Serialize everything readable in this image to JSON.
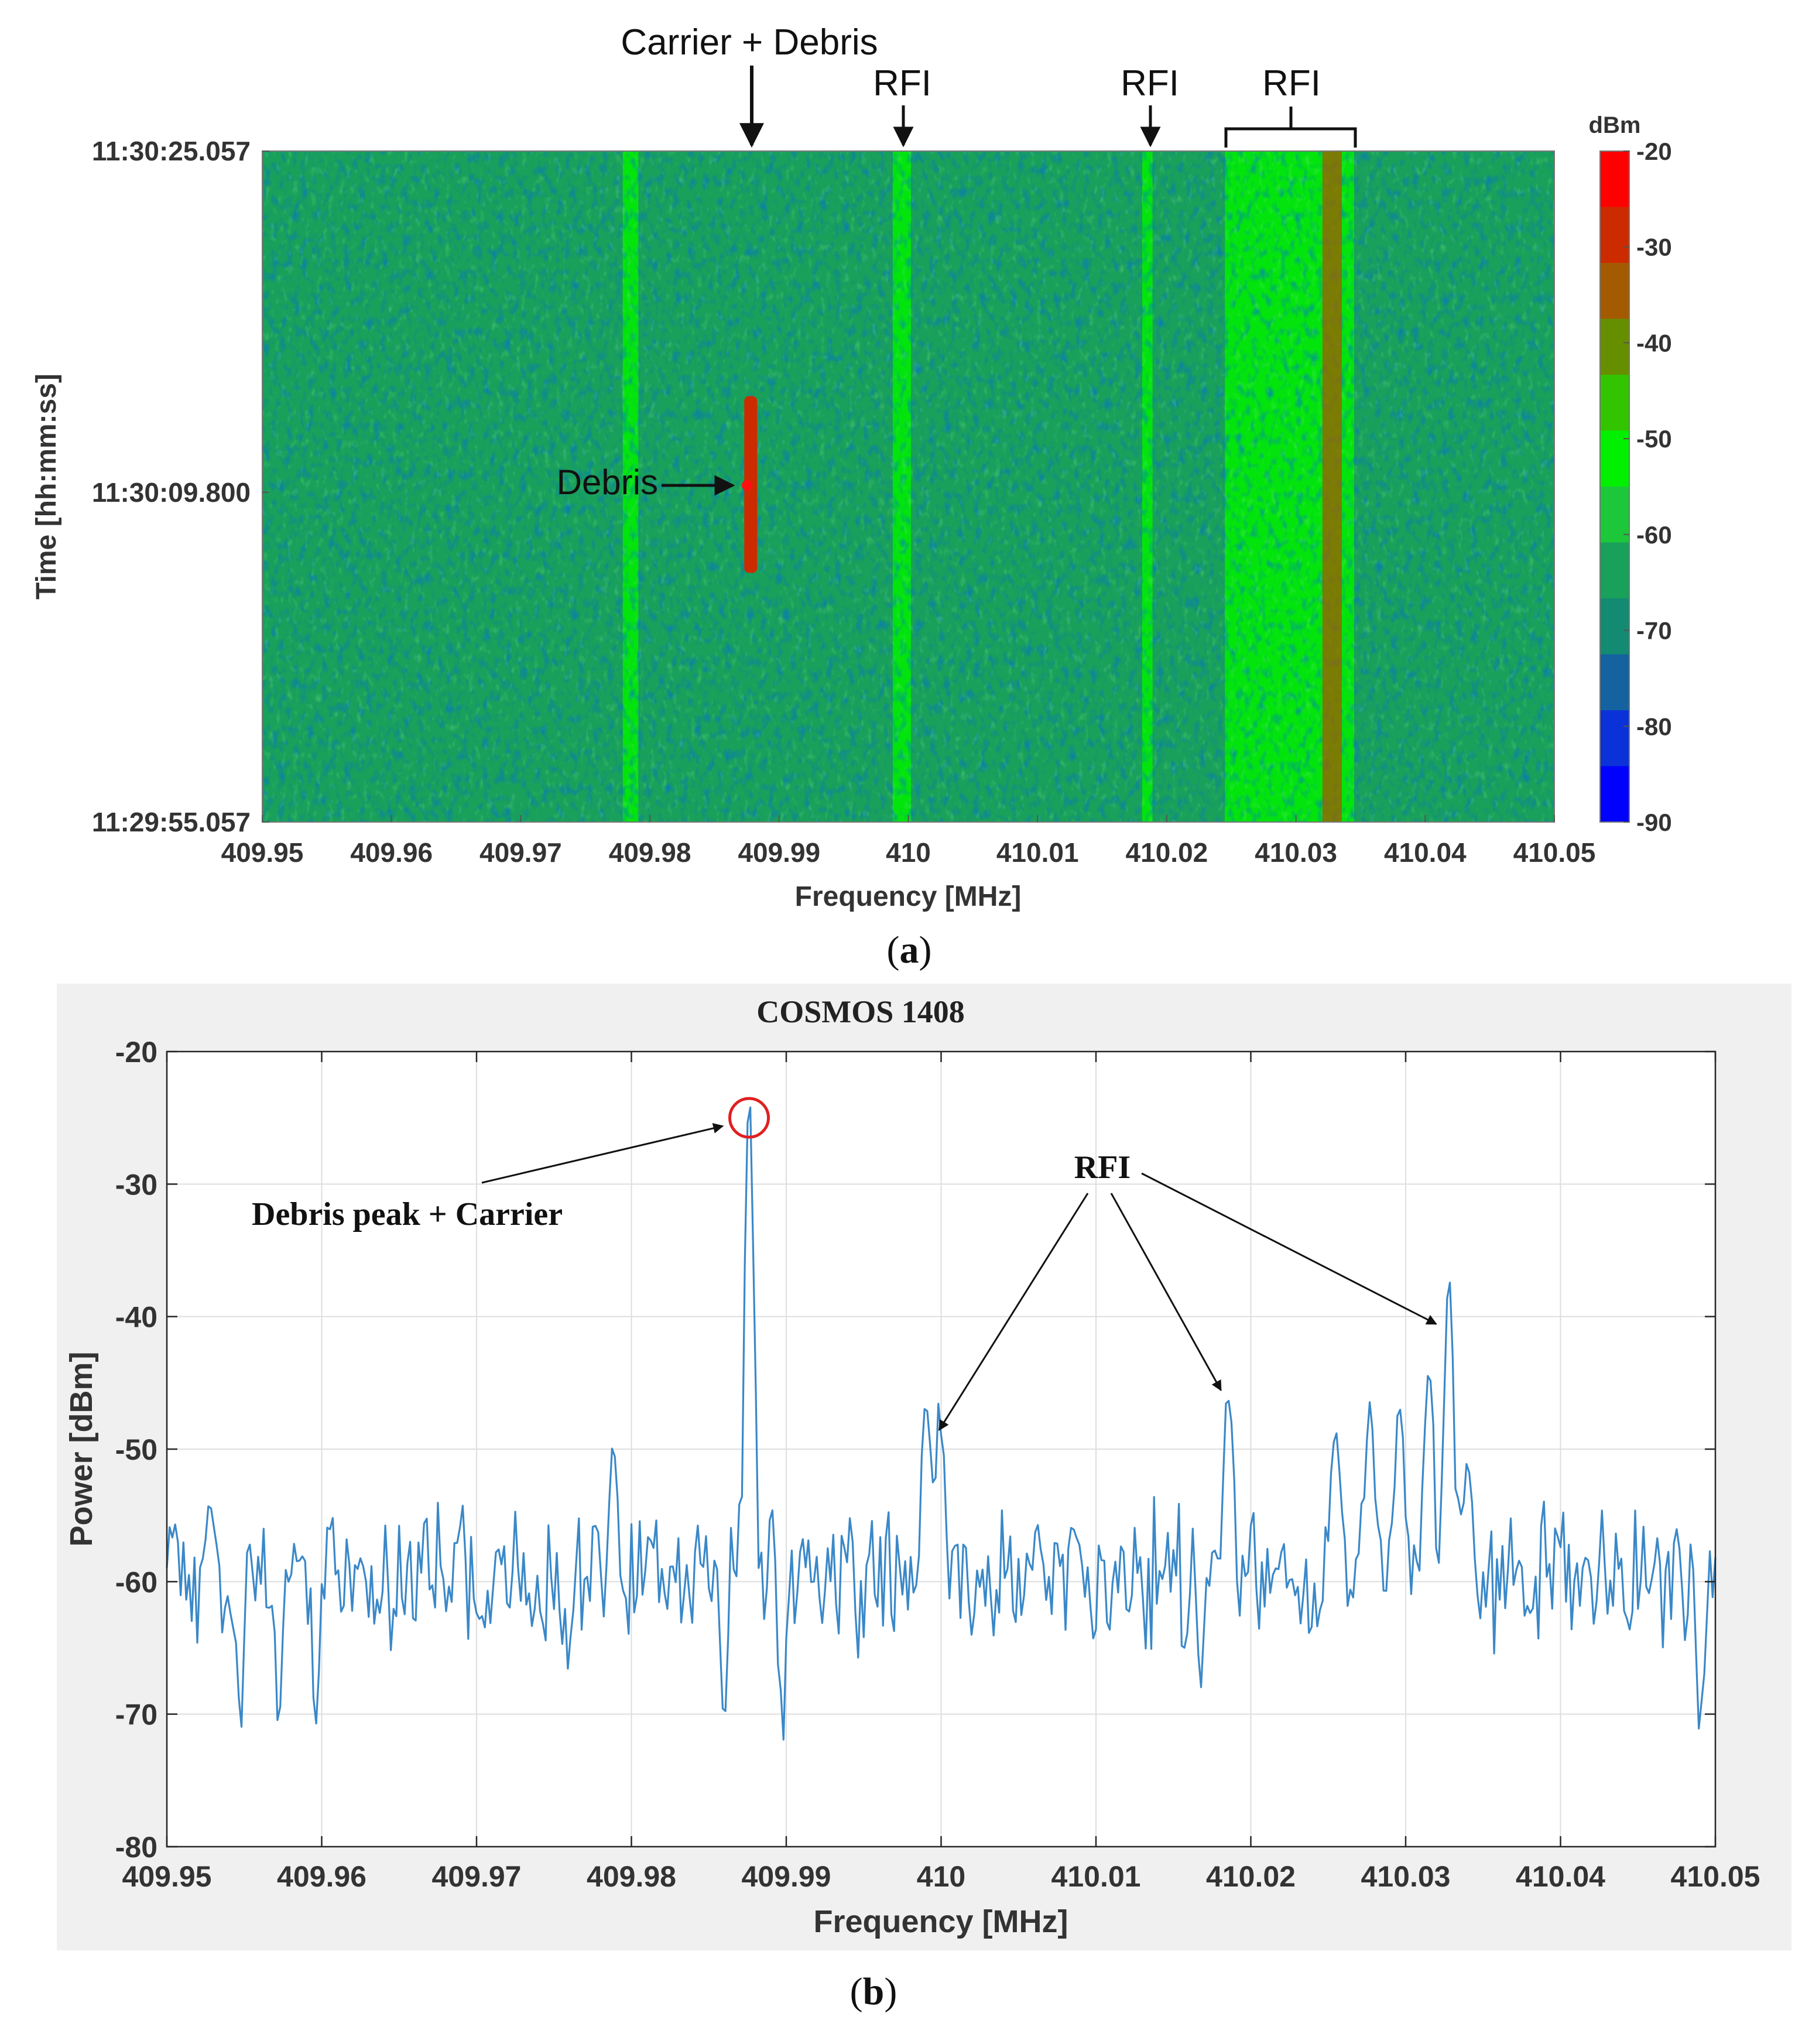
{
  "chart_data": [
    {
      "type": "heatmap",
      "panel_label": "(a)",
      "panel_letter": "a",
      "xlabel": "Frequency [MHz]",
      "ylabel": "Time [hh:mm:ss]",
      "xlim": [
        409.95,
        410.05
      ],
      "x_ticks": [
        "409.95",
        "409.96",
        "409.97",
        "409.98",
        "409.99",
        "410",
        "410.01",
        "410.02",
        "410.03",
        "410.04",
        "410.05"
      ],
      "y_ticks": [
        "11:30:25.057",
        "11:30:09.800",
        "11:29:55.057"
      ],
      "colorbar": {
        "label": "dBm",
        "range": [
          -90,
          -20
        ],
        "ticks": [
          "-20",
          "-30",
          "-40",
          "-50",
          "-60",
          "-70",
          "-80",
          "-90"
        ],
        "colors": [
          "#ff0000",
          "#cc2b00",
          "#a35a00",
          "#668f00",
          "#33c400",
          "#00f000",
          "#1cc83a",
          "#19a05a",
          "#138a72",
          "#1462a0",
          "#0a32d8",
          "#0000ff"
        ]
      },
      "background_dbm": -62,
      "bands": [
        {
          "center": 409.9785,
          "width": 0.0012,
          "level_dbm": -52
        },
        {
          "center": 409.9995,
          "width": 0.0014,
          "level_dbm": -50
        },
        {
          "center": 410.0185,
          "width": 0.0008,
          "level_dbm": -50
        },
        {
          "center": 410.0295,
          "width": 0.01,
          "level_dbm": -52
        },
        {
          "center": 410.0328,
          "width": 0.0015,
          "level_dbm": -33
        }
      ],
      "debris_trace": {
        "frequency": 409.9878,
        "time_start": "11:30:14.1",
        "time_end": "11:30:06.2",
        "level_dbm": -30
      },
      "annotations": [
        {
          "text": "Carrier + Debris",
          "x": 409.9878
        },
        {
          "text": "RFI",
          "x": 409.9995
        },
        {
          "text": "RFI",
          "x": 410.0185
        },
        {
          "text": "RFI",
          "x_range": [
            410.0245,
            410.0345
          ]
        },
        {
          "text": "Debris",
          "x": 409.9878,
          "time": "11:30:09.800"
        }
      ]
    },
    {
      "type": "line",
      "panel_label": "(b)",
      "panel_letter": "b",
      "title": "COSMOS 1408",
      "xlabel": "Frequency [MHz]",
      "ylabel": "Power [dBm]",
      "xlim": [
        409.95,
        410.05
      ],
      "ylim": [
        -80,
        -20
      ],
      "x_ticks": [
        "409.95",
        "409.96",
        "409.97",
        "409.98",
        "409.99",
        "410",
        "410.01",
        "410.02",
        "410.03",
        "410.04",
        "410.05"
      ],
      "y_ticks": [
        "-20",
        "-30",
        "-40",
        "-50",
        "-60",
        "-70",
        "-80"
      ],
      "grid": true,
      "line_color": "#3a88c8",
      "baseline_dbm": -62,
      "noise_amplitude_db": 4,
      "peaks": [
        {
          "x": 409.9528,
          "y": -56
        },
        {
          "x": 409.9788,
          "y": -52
        },
        {
          "x": 409.9876,
          "y": -25
        },
        {
          "x": 409.999,
          "y": -48.5
        },
        {
          "x": 409.9999,
          "y": -48.5
        },
        {
          "x": 410.0062,
          "y": -57
        },
        {
          "x": 410.0086,
          "y": -57
        },
        {
          "x": 410.0185,
          "y": -46
        },
        {
          "x": 410.0255,
          "y": -49
        },
        {
          "x": 410.0277,
          "y": -47
        },
        {
          "x": 410.0296,
          "y": -47
        },
        {
          "x": 410.0315,
          "y": -44
        },
        {
          "x": 410.0328,
          "y": -37
        },
        {
          "x": 410.034,
          "y": -51
        }
      ],
      "dips": [
        {
          "x": 409.9548,
          "y": -71
        },
        {
          "x": 409.9572,
          "y": -71
        },
        {
          "x": 409.9596,
          "y": -71
        },
        {
          "x": 409.986,
          "y": -71
        },
        {
          "x": 409.9898,
          "y": -72
        },
        {
          "x": 410.0168,
          "y": -68
        },
        {
          "x": 410.049,
          "y": -72
        }
      ],
      "annotations": [
        {
          "text": "Debris peak + Carrier",
          "target_x": 409.9876,
          "target_y": -25
        },
        {
          "text": "RFI",
          "targets": [
            [
              410.0001,
              -49
            ],
            [
              410.0183,
              -46
            ],
            [
              410.0322,
              -41
            ]
          ]
        }
      ]
    }
  ]
}
